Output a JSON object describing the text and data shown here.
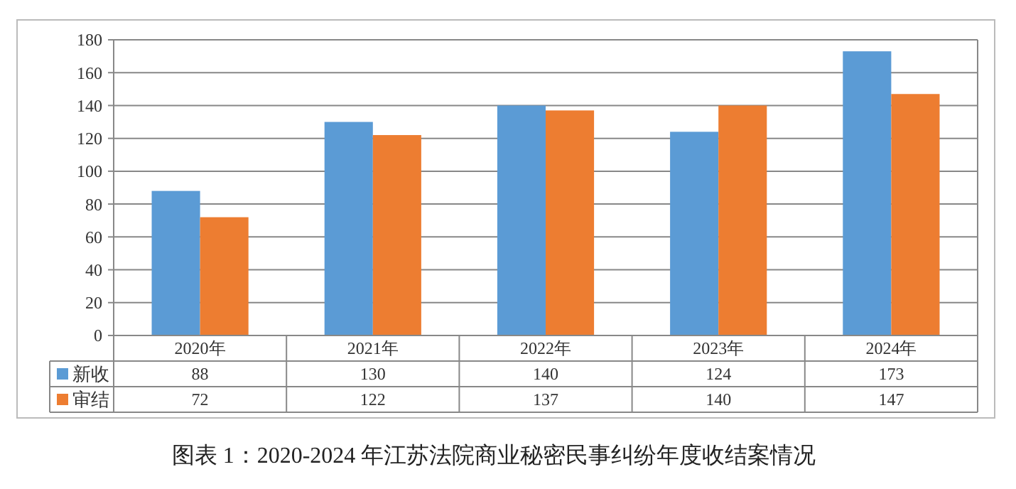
{
  "chart_data": {
    "type": "bar",
    "title": "图表 1：2020-2024 年江苏法院商业秘密民事纠纷年度收结案情况",
    "categories": [
      "2020年",
      "2021年",
      "2022年",
      "2023年",
      "2024年"
    ],
    "series": [
      {
        "name": "新收",
        "color": "#5b9bd5",
        "values": [
          88,
          130,
          140,
          124,
          173
        ]
      },
      {
        "name": "审结",
        "color": "#ed7d31",
        "values": [
          72,
          122,
          137,
          140,
          147
        ]
      }
    ],
    "ylim": [
      0,
      180
    ],
    "yticks": [
      0,
      20,
      40,
      60,
      80,
      100,
      120,
      140,
      160,
      180
    ],
    "grid": "y",
    "data_labels": true,
    "legend": "bottom"
  }
}
